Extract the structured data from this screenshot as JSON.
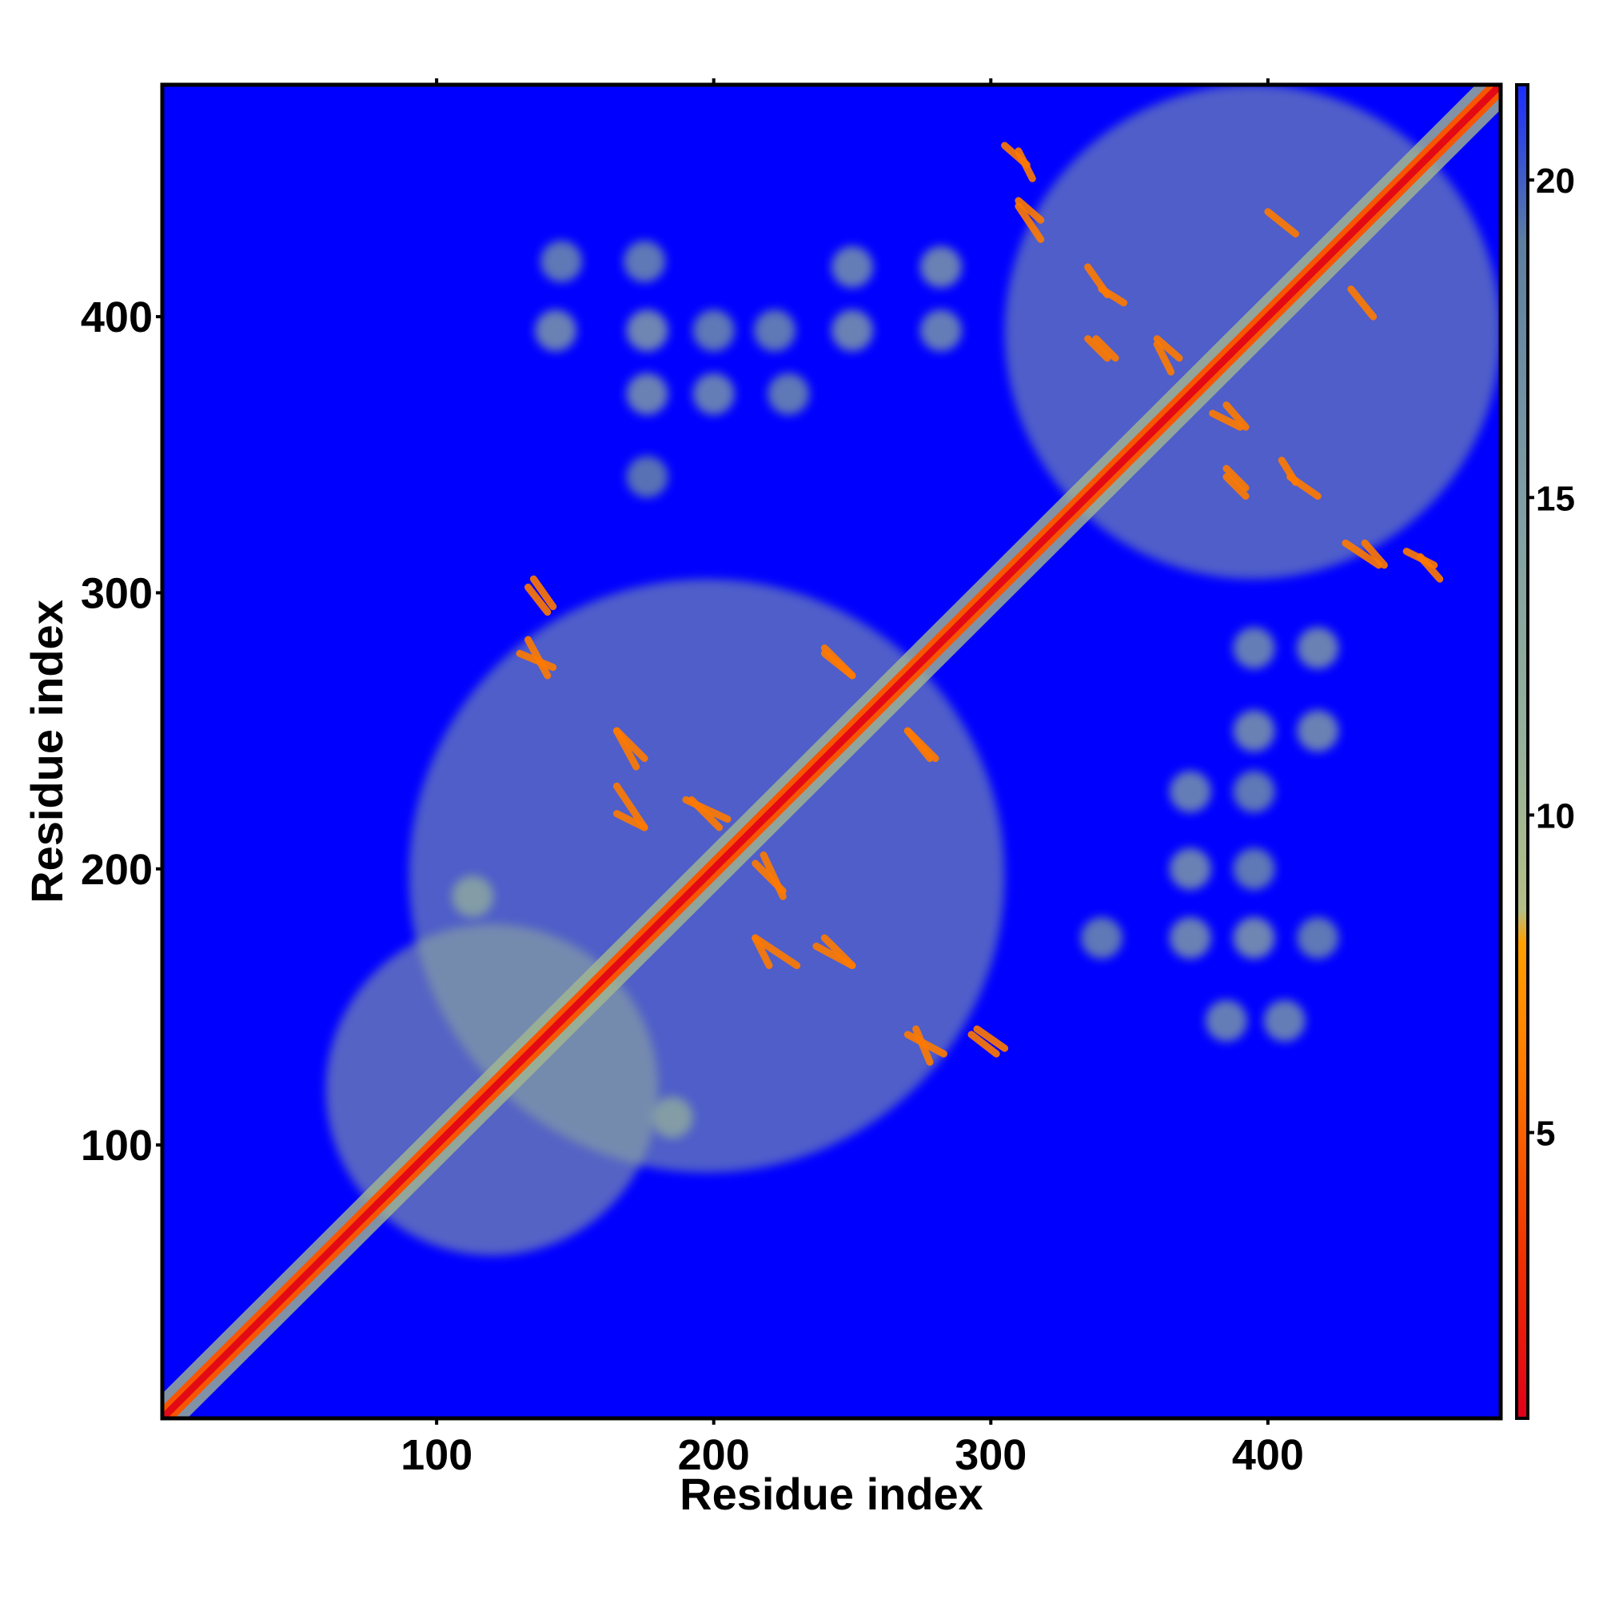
{
  "chart_data": {
    "type": "heatmap",
    "title": "",
    "xlabel": "Residue index",
    "ylabel": "Residue index",
    "xlim": [
      1,
      484
    ],
    "ylim": [
      1,
      484
    ],
    "xticks": [
      100,
      200,
      300,
      400
    ],
    "yticks": [
      100,
      200,
      300,
      400
    ],
    "top_ticks": [
      100,
      200,
      300,
      400
    ],
    "grid": false,
    "colorbar": {
      "range": [
        0.5,
        21.5
      ],
      "ticks": [
        5,
        10,
        15,
        20
      ],
      "palette": [
        {
          "value": 0.5,
          "color": "#e0001a"
        },
        {
          "value": 3.0,
          "color": "#f03000"
        },
        {
          "value": 6.0,
          "color": "#ff7a00"
        },
        {
          "value": 8.0,
          "color": "#ffa000"
        },
        {
          "value": 8.5,
          "color": "#b4bf86"
        },
        {
          "value": 11.0,
          "color": "#96b19a"
        },
        {
          "value": 15.0,
          "color": "#7f9da5"
        },
        {
          "value": 19.0,
          "color": "#5d7fa0"
        },
        {
          "value": 21.5,
          "color": "#1a2cff"
        }
      ]
    },
    "background_value": 21.5,
    "background_color": "#0000ff",
    "diagonal": {
      "from": 1,
      "to": 484,
      "core_value": 1.0,
      "halo_value": 4.5
    },
    "contact_blocks": [
      {
        "x": [
          60,
          180
        ],
        "y": [
          60,
          180
        ],
        "value": 10.5
      },
      {
        "x": [
          90,
          305
        ],
        "y": [
          90,
          305
        ],
        "value": 12
      },
      {
        "x": [
          305,
          484
        ],
        "y": [
          305,
          484
        ],
        "value": 12
      }
    ],
    "contact_lines": [
      {
        "x": [
          135,
          142
        ],
        "y": [
          295,
          305
        ],
        "value": 6
      },
      {
        "x": [
          130,
          142
        ],
        "y": [
          273,
          278
        ],
        "value": 6
      },
      {
        "x": [
          165,
          175
        ],
        "y": [
          240,
          250
        ],
        "value": 6
      },
      {
        "x": [
          165,
          175
        ],
        "y": [
          215,
          220
        ],
        "value": 6
      },
      {
        "x": [
          190,
          205
        ],
        "y": [
          218,
          225
        ],
        "value": 6
      },
      {
        "x": [
          215,
          225
        ],
        "y": [
          192,
          202
        ],
        "value": 6
      },
      {
        "x": [
          215,
          230
        ],
        "y": [
          165,
          175
        ],
        "value": 6
      },
      {
        "x": [
          237,
          250
        ],
        "y": [
          165,
          172
        ],
        "value": 6
      },
      {
        "x": [
          270,
          283
        ],
        "y": [
          133,
          140
        ],
        "value": 6
      },
      {
        "x": [
          293,
          302
        ],
        "y": [
          133,
          140
        ],
        "value": 6
      },
      {
        "x": [
          240,
          250
        ],
        "y": [
          270,
          278
        ],
        "value": 6
      },
      {
        "x": [
          270,
          280
        ],
        "y": [
          240,
          250
        ],
        "value": 6
      },
      {
        "x": [
          310,
          318
        ],
        "y": [
          435,
          442
        ],
        "value": 6
      },
      {
        "x": [
          305,
          313
        ],
        "y": [
          455,
          462
        ],
        "value": 6
      },
      {
        "x": [
          338,
          345
        ],
        "y": [
          385,
          392
        ],
        "value": 6
      },
      {
        "x": [
          340,
          348
        ],
        "y": [
          405,
          410
        ],
        "value": 6
      },
      {
        "x": [
          360,
          368
        ],
        "y": [
          385,
          392
        ],
        "value": 6
      },
      {
        "x": [
          380,
          390
        ],
        "y": [
          360,
          365
        ],
        "value": 6
      },
      {
        "x": [
          385,
          392
        ],
        "y": [
          335,
          342
        ],
        "value": 6
      },
      {
        "x": [
          408,
          418
        ],
        "y": [
          335,
          342
        ],
        "value": 6
      },
      {
        "x": [
          428,
          440
        ],
        "y": [
          310,
          318
        ],
        "value": 6
      },
      {
        "x": [
          450,
          460
        ],
        "y": [
          310,
          315
        ],
        "value": 6
      },
      {
        "x": [
          400,
          410
        ],
        "y": [
          430,
          438
        ],
        "value": 6
      }
    ],
    "off_diagonal_patches": [
      {
        "x": 143,
        "y": 395,
        "value": 14
      },
      {
        "x": 176,
        "y": 395,
        "value": 13
      },
      {
        "x": 176,
        "y": 372,
        "value": 14
      },
      {
        "x": 200,
        "y": 395,
        "value": 16
      },
      {
        "x": 200,
        "y": 372,
        "value": 15
      },
      {
        "x": 222,
        "y": 395,
        "value": 16
      },
      {
        "x": 227,
        "y": 372,
        "value": 16
      },
      {
        "x": 250,
        "y": 395,
        "value": 14
      },
      {
        "x": 250,
        "y": 418,
        "value": 15
      },
      {
        "x": 282,
        "y": 418,
        "value": 14
      },
      {
        "x": 282,
        "y": 395,
        "value": 15
      },
      {
        "x": 145,
        "y": 420,
        "value": 16
      },
      {
        "x": 175,
        "y": 420,
        "value": 16
      },
      {
        "x": 176,
        "y": 342,
        "value": 17
      },
      {
        "x": 185,
        "y": 110,
        "value": 12
      },
      {
        "x": 113,
        "y": 190,
        "value": 12
      },
      {
        "x": 385,
        "y": 145,
        "value": 15
      },
      {
        "x": 406,
        "y": 145,
        "value": 15
      },
      {
        "x": 372,
        "y": 175,
        "value": 14
      },
      {
        "x": 395,
        "y": 175,
        "value": 13
      },
      {
        "x": 418,
        "y": 175,
        "value": 16
      },
      {
        "x": 340,
        "y": 175,
        "value": 16
      },
      {
        "x": 372,
        "y": 200,
        "value": 14
      },
      {
        "x": 395,
        "y": 200,
        "value": 16
      },
      {
        "x": 372,
        "y": 228,
        "value": 15
      },
      {
        "x": 395,
        "y": 228,
        "value": 16
      },
      {
        "x": 395,
        "y": 250,
        "value": 14
      },
      {
        "x": 418,
        "y": 250,
        "value": 14
      },
      {
        "x": 395,
        "y": 280,
        "value": 15
      },
      {
        "x": 418,
        "y": 280,
        "value": 14
      }
    ]
  }
}
